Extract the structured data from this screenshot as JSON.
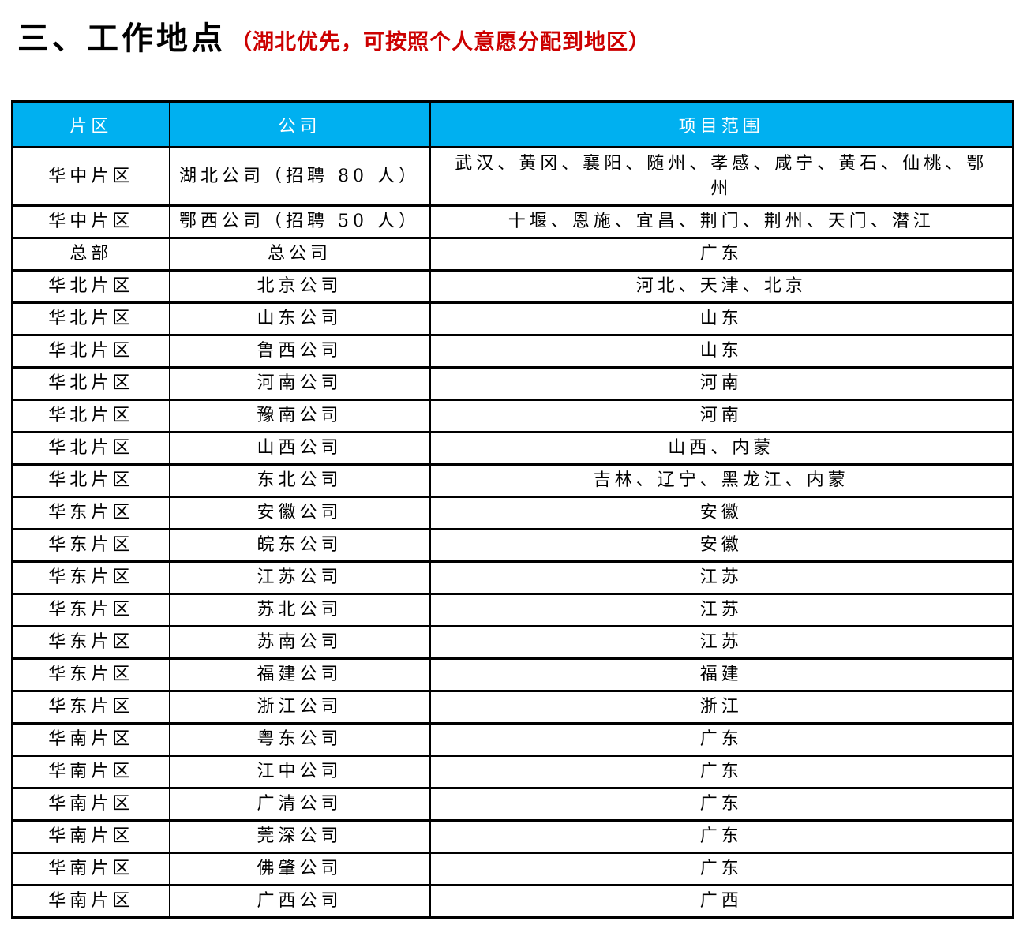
{
  "title": {
    "main": "三、工作地点",
    "note": "（湖北优先，可按照个人意愿分配到地区）"
  },
  "colors": {
    "header_bg": "#00B0F0",
    "header_fg": "#FFFFFF",
    "note_red": "#CC0000",
    "border": "#000000"
  },
  "table": {
    "headers": [
      "片区",
      "公司",
      "项目范围"
    ],
    "rows": [
      {
        "region": "华中片区",
        "company": "湖北公司（招聘 80 人）",
        "scope": "武汉、黄冈、襄阳、随州、孝感、咸宁、黄石、仙桃、鄂州"
      },
      {
        "region": "华中片区",
        "company": "鄂西公司（招聘 50 人）",
        "scope": "十堰、恩施、宜昌、荆门、荆州、天门、潜江"
      },
      {
        "region": "总部",
        "company": "总公司",
        "scope": "广东"
      },
      {
        "region": "华北片区",
        "company": "北京公司",
        "scope": "河北、天津、北京"
      },
      {
        "region": "华北片区",
        "company": "山东公司",
        "scope": "山东"
      },
      {
        "region": "华北片区",
        "company": "鲁西公司",
        "scope": "山东"
      },
      {
        "region": "华北片区",
        "company": "河南公司",
        "scope": "河南"
      },
      {
        "region": "华北片区",
        "company": "豫南公司",
        "scope": "河南"
      },
      {
        "region": "华北片区",
        "company": "山西公司",
        "scope": "山西、内蒙"
      },
      {
        "region": "华北片区",
        "company": "东北公司",
        "scope": "吉林、辽宁、黑龙江、内蒙"
      },
      {
        "region": "华东片区",
        "company": "安徽公司",
        "scope": "安徽"
      },
      {
        "region": "华东片区",
        "company": "皖东公司",
        "scope": "安徽"
      },
      {
        "region": "华东片区",
        "company": "江苏公司",
        "scope": "江苏"
      },
      {
        "region": "华东片区",
        "company": "苏北公司",
        "scope": "江苏"
      },
      {
        "region": "华东片区",
        "company": "苏南公司",
        "scope": "江苏"
      },
      {
        "region": "华东片区",
        "company": "福建公司",
        "scope": "福建"
      },
      {
        "region": "华东片区",
        "company": "浙江公司",
        "scope": "浙江"
      },
      {
        "region": "华南片区",
        "company": "粤东公司",
        "scope": "广东"
      },
      {
        "region": "华南片区",
        "company": "江中公司",
        "scope": "广东"
      },
      {
        "region": "华南片区",
        "company": "广清公司",
        "scope": "广东"
      },
      {
        "region": "华南片区",
        "company": "莞深公司",
        "scope": "广东"
      },
      {
        "region": "华南片区",
        "company": "佛肇公司",
        "scope": "广东"
      },
      {
        "region": "华南片区",
        "company": "广西公司",
        "scope": "广西"
      }
    ]
  }
}
